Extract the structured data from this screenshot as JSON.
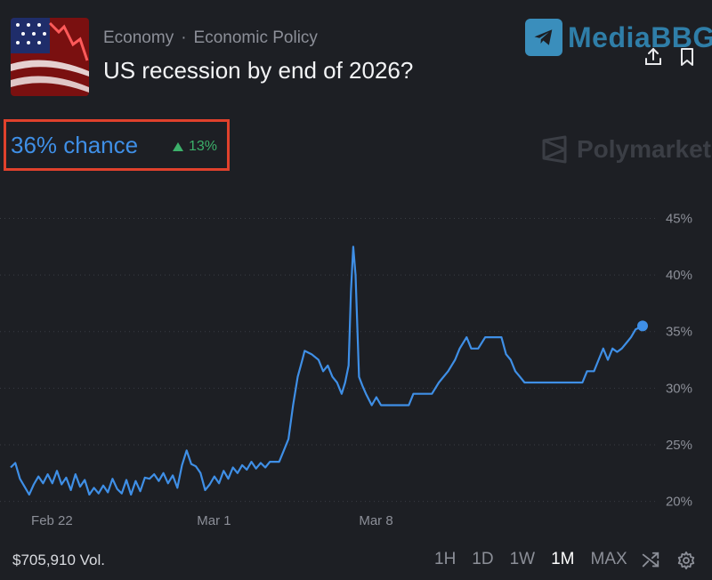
{
  "header": {
    "breadcrumb": [
      "Economy",
      "Economic Policy"
    ],
    "breadcrumb_sep": "·",
    "title": "US recession by end of 2026?",
    "thumbnail_icon": "us-flag-stock-chart-thumbnail"
  },
  "watermark": {
    "text": "MediaBBG",
    "icon": "telegram-icon"
  },
  "actions": [
    {
      "name": "share-icon"
    },
    {
      "name": "bookmark-icon"
    }
  ],
  "odds": {
    "chance_label": "36% chance",
    "delta_label": "13%",
    "delta_direction": "up",
    "delta_color": "#3cb06a",
    "accent_color": "#3f8fe6",
    "highlight_box_color": "#e0412c"
  },
  "brand": {
    "name": "Polymarket",
    "icon": "polymarket-logo-icon"
  },
  "chart_data": {
    "type": "line",
    "title": "",
    "xlabel": "",
    "ylabel": "",
    "x_ticks": [
      {
        "label": "Feb 22",
        "day": 0
      },
      {
        "label": "Mar 1",
        "day": 7
      },
      {
        "label": "Mar 8",
        "day": 14
      }
    ],
    "y_ticks": [
      "45%",
      "40%",
      "35%",
      "30%",
      "25%",
      "20%"
    ],
    "y_tick_values": [
      45,
      40,
      35,
      30,
      25,
      20
    ],
    "ylim": [
      19.5,
      47
    ],
    "xlim": [
      -0.4,
      26.9
    ],
    "grid": true,
    "line_color": "#3f8fe6",
    "series": [
      {
        "values": [
          [
            -0.4,
            23.0
          ],
          [
            -0.2,
            23.4
          ],
          [
            0.0,
            22.0
          ],
          [
            0.2,
            21.3
          ],
          [
            0.4,
            20.6
          ],
          [
            0.6,
            21.5
          ],
          [
            0.8,
            22.2
          ],
          [
            1.0,
            21.6
          ],
          [
            1.2,
            22.4
          ],
          [
            1.4,
            21.6
          ],
          [
            1.6,
            22.7
          ],
          [
            1.8,
            21.5
          ],
          [
            2.0,
            22.1
          ],
          [
            2.2,
            21.0
          ],
          [
            2.4,
            22.4
          ],
          [
            2.6,
            21.3
          ],
          [
            2.8,
            21.9
          ],
          [
            3.0,
            20.6
          ],
          [
            3.2,
            21.2
          ],
          [
            3.4,
            20.7
          ],
          [
            3.6,
            21.4
          ],
          [
            3.8,
            20.8
          ],
          [
            4.0,
            22.0
          ],
          [
            4.2,
            21.1
          ],
          [
            4.4,
            20.7
          ],
          [
            4.6,
            21.9
          ],
          [
            4.8,
            20.6
          ],
          [
            5.0,
            21.8
          ],
          [
            5.2,
            20.9
          ],
          [
            5.4,
            22.1
          ],
          [
            5.6,
            22.0
          ],
          [
            5.8,
            22.4
          ],
          [
            6.0,
            21.8
          ],
          [
            6.2,
            22.5
          ],
          [
            6.4,
            21.6
          ],
          [
            6.6,
            22.3
          ],
          [
            6.8,
            21.2
          ],
          [
            7.0,
            23.2
          ],
          [
            7.2,
            24.5
          ],
          [
            7.4,
            23.3
          ],
          [
            7.6,
            23.1
          ],
          [
            7.8,
            22.5
          ],
          [
            8.0,
            21.0
          ],
          [
            8.2,
            21.5
          ],
          [
            8.4,
            22.2
          ],
          [
            8.6,
            21.6
          ],
          [
            8.8,
            22.7
          ],
          [
            9.0,
            22.0
          ],
          [
            9.2,
            23.0
          ],
          [
            9.4,
            22.5
          ],
          [
            9.6,
            23.2
          ],
          [
            9.8,
            22.8
          ],
          [
            10.0,
            23.5
          ],
          [
            10.2,
            22.9
          ],
          [
            10.4,
            23.4
          ],
          [
            10.6,
            23.0
          ],
          [
            10.8,
            23.5
          ],
          [
            11.0,
            23.5
          ],
          [
            11.2,
            23.5
          ],
          [
            11.4,
            24.5
          ],
          [
            11.6,
            25.5
          ],
          [
            11.8,
            28.5
          ],
          [
            12.0,
            31.0
          ],
          [
            12.2,
            32.5
          ],
          [
            12.3,
            33.3
          ],
          [
            12.6,
            33.0
          ],
          [
            12.9,
            32.5
          ],
          [
            13.1,
            31.5
          ],
          [
            13.3,
            32.0
          ],
          [
            13.5,
            31.0
          ],
          [
            13.7,
            30.5
          ],
          [
            13.9,
            29.5
          ],
          [
            14.05,
            30.5
          ],
          [
            14.2,
            32.0
          ],
          [
            14.3,
            38.5
          ],
          [
            14.4,
            42.5
          ],
          [
            14.5,
            40.0
          ],
          [
            14.65,
            31.0
          ],
          [
            14.8,
            30.2
          ],
          [
            14.95,
            29.5
          ],
          [
            15.2,
            28.5
          ],
          [
            15.4,
            29.2
          ],
          [
            15.6,
            28.5
          ],
          [
            16.2,
            28.5
          ],
          [
            16.8,
            28.5
          ],
          [
            17.0,
            29.5
          ],
          [
            17.8,
            29.5
          ],
          [
            18.1,
            30.5
          ],
          [
            18.5,
            31.5
          ],
          [
            18.8,
            32.5
          ],
          [
            19.0,
            33.5
          ],
          [
            19.3,
            34.5
          ],
          [
            19.5,
            33.5
          ],
          [
            19.8,
            33.5
          ],
          [
            20.1,
            34.5
          ],
          [
            20.5,
            34.5
          ],
          [
            20.8,
            34.5
          ],
          [
            21.0,
            33.0
          ],
          [
            21.2,
            32.5
          ],
          [
            21.4,
            31.5
          ],
          [
            21.6,
            31.0
          ],
          [
            21.8,
            30.5
          ],
          [
            22.2,
            30.5
          ],
          [
            23.5,
            30.5
          ],
          [
            24.3,
            30.5
          ],
          [
            24.5,
            31.5
          ],
          [
            24.8,
            31.5
          ],
          [
            25.0,
            32.5
          ],
          [
            25.2,
            33.5
          ],
          [
            25.4,
            32.5
          ],
          [
            25.6,
            33.5
          ],
          [
            25.8,
            33.2
          ],
          [
            26.0,
            33.5
          ],
          [
            26.2,
            34.0
          ],
          [
            26.4,
            34.5
          ],
          [
            26.6,
            35.2
          ],
          [
            26.9,
            35.5
          ]
        ]
      }
    ]
  },
  "footer": {
    "volume_label": "$705,910 Vol.",
    "ranges": [
      {
        "label": "1H",
        "active": false
      },
      {
        "label": "1D",
        "active": false
      },
      {
        "label": "1W",
        "active": false
      },
      {
        "label": "1M",
        "active": true
      },
      {
        "label": "MAX",
        "active": false
      }
    ],
    "tools": [
      "shuffle-icon",
      "settings-gear-icon"
    ]
  }
}
